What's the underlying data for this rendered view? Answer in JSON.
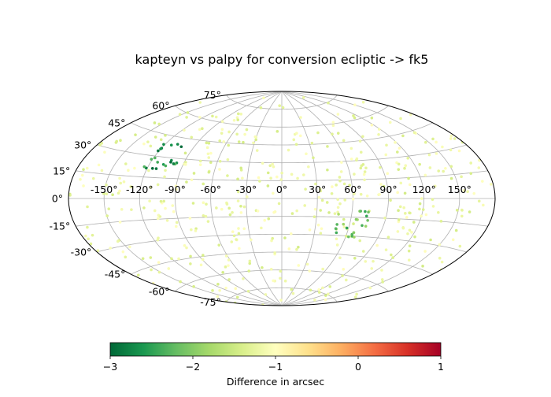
{
  "chart_data": {
    "type": "scatter",
    "projection": "aitoff",
    "title": "kapteyn vs palpy for conversion ecliptic -> fk5",
    "longitude_ticks": [
      "-150°",
      "-120°",
      "-90°",
      "-60°",
      "-30°",
      "0°",
      "30°",
      "60°",
      "90°",
      "120°",
      "150°"
    ],
    "longitude_tick_values": [
      -150,
      -120,
      -90,
      -60,
      -30,
      0,
      30,
      60,
      90,
      120,
      150
    ],
    "latitude_ticks": [
      "75°",
      "60°",
      "45°",
      "30°",
      "15°",
      "0°",
      "-15°",
      "-30°",
      "-45°",
      "-60°",
      "-75°"
    ],
    "latitude_tick_values": [
      75,
      60,
      45,
      30,
      15,
      0,
      -15,
      -30,
      -45,
      -60,
      -75
    ],
    "grid": true,
    "colorbar": {
      "label": "Difference in arcsec",
      "colormap": "RdYlGn_r",
      "range": [
        -3,
        1
      ],
      "ticks": [
        "−3",
        "−2",
        "−1",
        "0",
        "1"
      ],
      "tick_values": [
        -3,
        -2,
        -1,
        0,
        1
      ]
    },
    "point_count": 500,
    "typical_value": -1.2,
    "clusters": [
      {
        "lon": -110,
        "lat": 30,
        "value_min": -3.0,
        "value_max": -2.2
      },
      {
        "lon": 60,
        "lat": -20,
        "value_min": -2.5,
        "value_max": -1.7
      }
    ]
  }
}
